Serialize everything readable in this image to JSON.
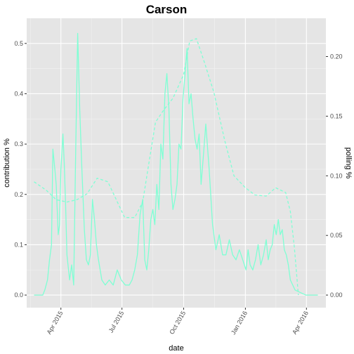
{
  "chart_data": {
    "type": "line",
    "title": "Carson",
    "xlabel": "date",
    "ylabel": "contribution %",
    "y2label": "polling %",
    "x_ticks": [
      "Apr 2015",
      "Jul 2015",
      "Oct 2015",
      "Jan 2016",
      "Apr 2016"
    ],
    "x_tick_dates": [
      "2015-04-01",
      "2015-07-01",
      "2015-10-01",
      "2016-01-01",
      "2016-04-01"
    ],
    "xlim": [
      "2015-02-09",
      "2016-04-30"
    ],
    "ylim": [
      -0.025,
      0.55
    ],
    "y_ticks": [
      0.0,
      0.1,
      0.2,
      0.3,
      0.4,
      0.5
    ],
    "y_tick_labels": [
      "0.0",
      "0.1",
      "0.2",
      "0.3",
      "0.4",
      "0.5"
    ],
    "y2lim": [
      -0.01055,
      0.2321
    ],
    "y2_ticks": [
      0.0,
      0.05,
      0.1,
      0.15,
      0.2
    ],
    "y2_tick_labels": [
      "0.00",
      "0.05",
      "0.10",
      "0.15",
      "0.20"
    ],
    "grid": true,
    "line_color": "#7FFFD4",
    "series": [
      {
        "axis": "left",
        "style": "solid",
        "x": [
          "2015-02-20",
          "2015-03-05",
          "2015-03-08",
          "2015-03-12",
          "2015-03-15",
          "2015-03-18",
          "2015-03-20",
          "2015-03-23",
          "2015-03-25",
          "2015-03-28",
          "2015-03-30",
          "2015-04-01",
          "2015-04-04",
          "2015-04-06",
          "2015-04-08",
          "2015-04-10",
          "2015-04-14",
          "2015-04-17",
          "2015-04-20",
          "2015-04-23",
          "2015-04-26",
          "2015-04-29",
          "2015-05-02",
          "2015-05-06",
          "2015-05-09",
          "2015-05-12",
          "2015-05-15",
          "2015-05-18",
          "2015-05-21",
          "2015-05-24",
          "2015-05-27",
          "2015-06-01",
          "2015-06-06",
          "2015-06-12",
          "2015-06-18",
          "2015-06-24",
          "2015-06-30",
          "2015-07-06",
          "2015-07-12",
          "2015-07-16",
          "2015-07-20",
          "2015-07-24",
          "2015-07-28",
          "2015-08-01",
          "2015-08-04",
          "2015-08-07",
          "2015-08-10",
          "2015-08-13",
          "2015-08-16",
          "2015-08-19",
          "2015-08-22",
          "2015-08-25",
          "2015-08-28",
          "2015-08-31",
          "2015-09-03",
          "2015-09-06",
          "2015-09-09",
          "2015-09-12",
          "2015-09-15",
          "2015-09-18",
          "2015-09-21",
          "2015-09-24",
          "2015-09-27",
          "2015-09-30",
          "2015-10-03",
          "2015-10-06",
          "2015-10-09",
          "2015-10-12",
          "2015-10-15",
          "2015-10-18",
          "2015-10-21",
          "2015-10-24",
          "2015-10-27",
          "2015-10-30",
          "2015-11-03",
          "2015-11-08",
          "2015-11-13",
          "2015-11-18",
          "2015-11-23",
          "2015-11-28",
          "2015-12-03",
          "2015-12-08",
          "2015-12-13",
          "2015-12-18",
          "2015-12-23",
          "2015-12-28",
          "2016-01-02",
          "2016-01-05",
          "2016-01-08",
          "2016-01-12",
          "2016-01-16",
          "2016-01-20",
          "2016-01-24",
          "2016-01-28",
          "2016-02-01",
          "2016-02-04",
          "2016-02-07",
          "2016-02-10",
          "2016-02-13",
          "2016-02-16",
          "2016-02-19",
          "2016-02-22",
          "2016-02-25",
          "2016-02-28",
          "2016-03-02",
          "2016-03-05",
          "2016-03-08",
          "2016-03-15",
          "2016-03-31",
          "2016-04-18"
        ],
        "y": [
          0.0,
          0.0,
          0.01,
          0.03,
          0.07,
          0.1,
          0.29,
          0.25,
          0.22,
          0.12,
          0.14,
          0.25,
          0.32,
          0.26,
          0.18,
          0.08,
          0.03,
          0.06,
          0.02,
          0.28,
          0.52,
          0.37,
          0.26,
          0.13,
          0.07,
          0.06,
          0.08,
          0.19,
          0.15,
          0.1,
          0.07,
          0.03,
          0.02,
          0.03,
          0.02,
          0.05,
          0.03,
          0.02,
          0.02,
          0.03,
          0.05,
          0.08,
          0.16,
          0.19,
          0.07,
          0.05,
          0.09,
          0.15,
          0.17,
          0.14,
          0.22,
          0.17,
          0.3,
          0.27,
          0.4,
          0.44,
          0.37,
          0.22,
          0.17,
          0.19,
          0.22,
          0.3,
          0.29,
          0.39,
          0.44,
          0.49,
          0.38,
          0.4,
          0.35,
          0.31,
          0.29,
          0.32,
          0.22,
          0.27,
          0.34,
          0.25,
          0.14,
          0.09,
          0.12,
          0.08,
          0.08,
          0.11,
          0.08,
          0.07,
          0.09,
          0.07,
          0.05,
          0.09,
          0.06,
          0.05,
          0.07,
          0.1,
          0.06,
          0.08,
          0.11,
          0.07,
          0.09,
          0.1,
          0.14,
          0.12,
          0.15,
          0.12,
          0.13,
          0.09,
          0.08,
          0.06,
          0.03,
          0.01,
          0.0,
          0.0
        ]
      },
      {
        "axis": "right",
        "style": "dashed",
        "x": [
          "2015-02-20",
          "2015-03-10",
          "2015-03-25",
          "2015-04-10",
          "2015-04-25",
          "2015-05-10",
          "2015-05-25",
          "2015-06-10",
          "2015-06-25",
          "2015-07-05",
          "2015-07-20",
          "2015-08-01",
          "2015-08-10",
          "2015-08-20",
          "2015-09-01",
          "2015-09-15",
          "2015-10-01",
          "2015-10-10",
          "2015-10-20",
          "2015-11-01",
          "2015-11-15",
          "2015-12-01",
          "2015-12-15",
          "2016-01-01",
          "2016-01-15",
          "2016-02-01",
          "2016-02-15",
          "2016-03-01",
          "2016-03-08",
          "2016-03-14",
          "2016-03-20"
        ],
        "y": [
          0.095,
          0.088,
          0.08,
          0.078,
          0.08,
          0.085,
          0.098,
          0.095,
          0.077,
          0.065,
          0.065,
          0.078,
          0.11,
          0.145,
          0.155,
          0.165,
          0.185,
          0.213,
          0.215,
          0.195,
          0.17,
          0.13,
          0.1,
          0.09,
          0.084,
          0.083,
          0.09,
          0.086,
          0.07,
          0.04,
          0.0
        ]
      }
    ]
  }
}
